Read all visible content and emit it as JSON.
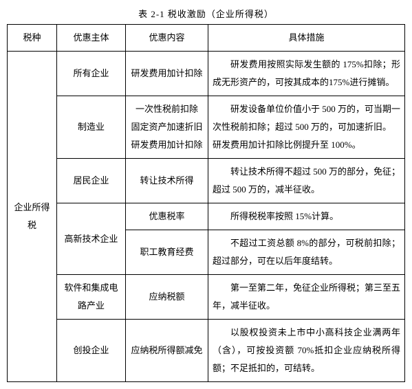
{
  "caption": "表 2-1  税收激励（企业所得税）",
  "headers": [
    "税种",
    "优惠主体",
    "优惠内容",
    "具体措施"
  ],
  "taxType": "企业所得税",
  "rows": [
    {
      "subject": "所有企业",
      "content": "研发费用加计扣除",
      "detail": "研发费用按照实际发生额的 175%扣除；形成无形资产的，可按其成本的175%进行摊销。"
    },
    {
      "subject": "制造业",
      "content": "一次性税前扣除\n固定资产加速折旧\n研发费用加计扣除",
      "detail": "研发设备单位价值小于 500 万的，可当期一次性税前扣除；超过 500 万的，可加速折旧。\n研发费用加计扣除比例提升至 100%。"
    },
    {
      "subject": "居民企业",
      "content": "转让技术所得",
      "detail": "转让技术所得不超过 500 万的部分，免征；超过 500 万的，减半征收。"
    },
    {
      "subject": "高新技术企业",
      "content1": "优惠税率",
      "detail1": "所得税税率按照 15%计算。",
      "content2": "职工教育经费",
      "detail2": "不超过工资总额 8%的部分，可税前扣除；超过部分，可在以后年度结转。"
    },
    {
      "subject": "软件和集成电路产业",
      "content": "应纳税额",
      "detail": "第一至第二年，免征企业所得税；第三至五年，减半征收。"
    },
    {
      "subject": "创投企业",
      "content": "应纳税所得额减免",
      "detail": "以股权投资未上市中小高科技企业满两年（含），可按投资额 70%抵扣企业应纳税所得额；不足抵扣的，可结转。"
    }
  ]
}
